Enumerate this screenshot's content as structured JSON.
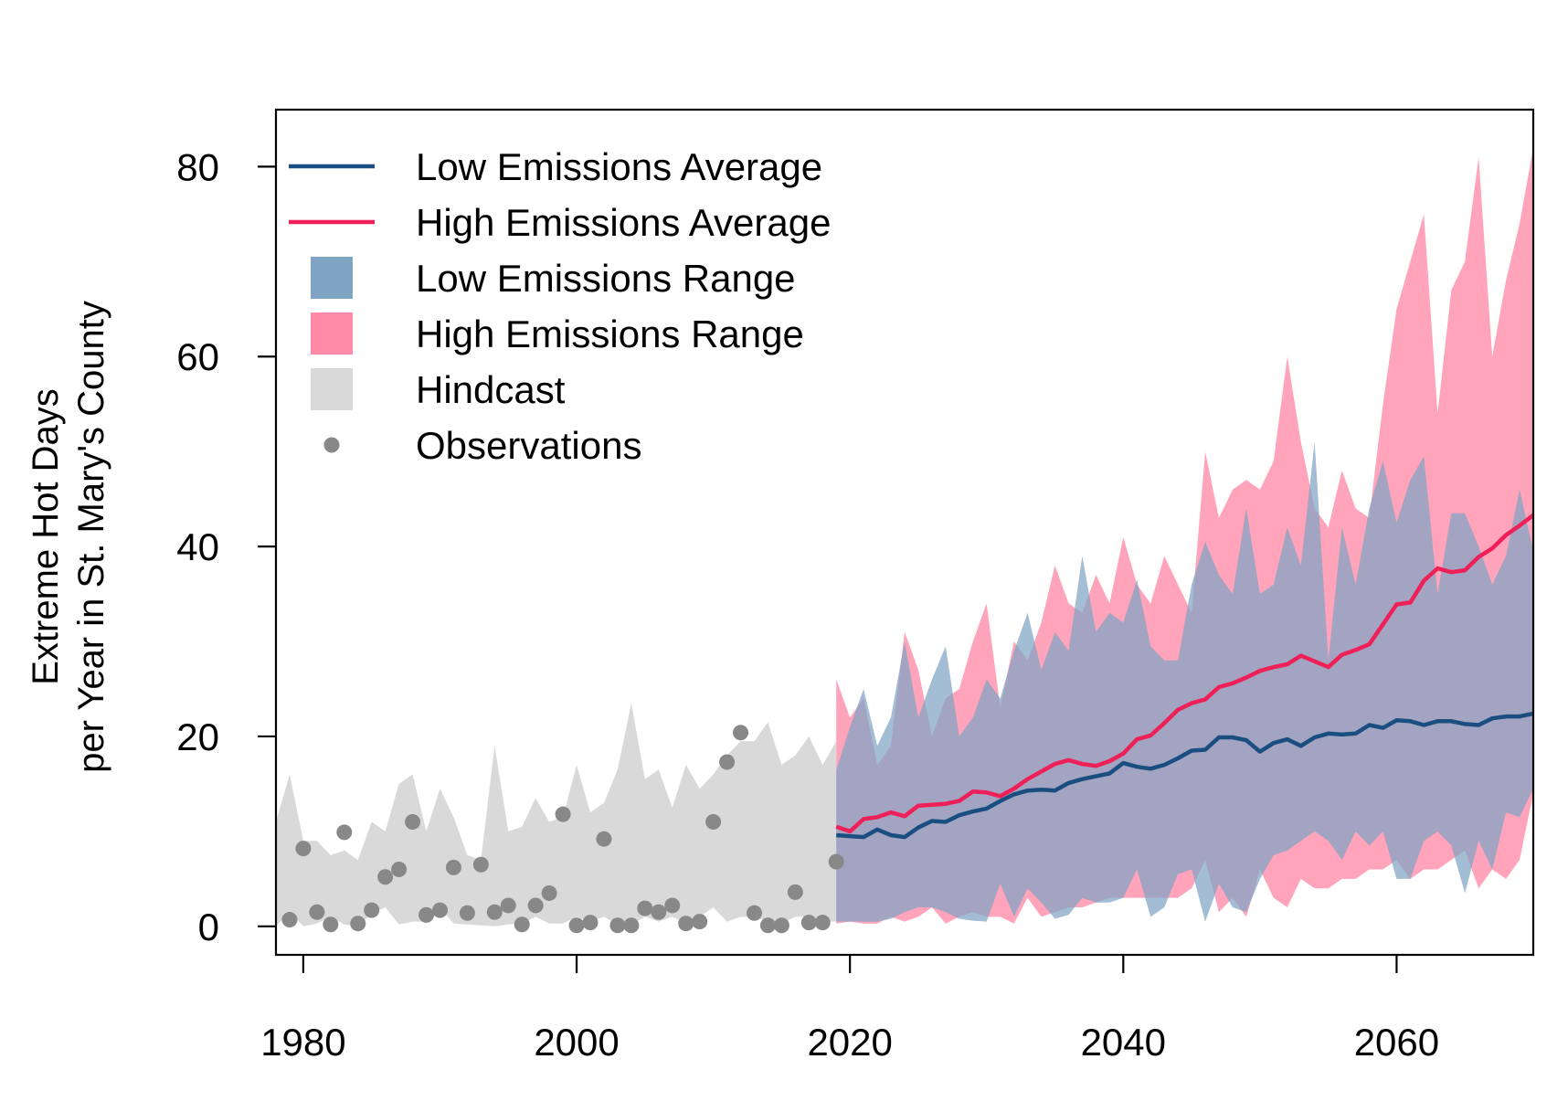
{
  "chart_data": {
    "type": "line",
    "title": "",
    "xlabel": "",
    "ylabel_line1": "Extreme Hot Days",
    "ylabel_line2": "per Year in St. Mary's County",
    "xlim": [
      1978,
      2070
    ],
    "ylim": [
      -3,
      86
    ],
    "x_ticks": [
      1980,
      2000,
      2020,
      2040,
      2060
    ],
    "y_ticks": [
      0,
      20,
      40,
      60,
      80
    ],
    "grid": false,
    "legend_position": "top-left",
    "colors": {
      "low_line": "#1a4e80",
      "high_line": "#ef1f57",
      "low_range": "#7fa3c3",
      "high_range": "#ff8aa8",
      "hindcast": "#d9d9d9",
      "observations": "#888888",
      "axis": "#000000"
    },
    "legend": [
      {
        "kind": "line",
        "label": "Low Emissions Average",
        "color": "#1a4e80"
      },
      {
        "kind": "line",
        "label": "High Emissions Average",
        "color": "#ef1f57"
      },
      {
        "kind": "box",
        "label": "Low Emissions Range",
        "color": "#7fa3c3"
      },
      {
        "kind": "box",
        "label": "High Emissions Range",
        "color": "#ff8aa8"
      },
      {
        "kind": "box",
        "label": "Hindcast",
        "color": "#d9d9d9"
      },
      {
        "kind": "point",
        "label": "Observations",
        "color": "#888888"
      }
    ],
    "hindcast": {
      "x": [
        1978,
        1979,
        1980,
        1981,
        1982,
        1983,
        1984,
        1985,
        1986,
        1987,
        1988,
        1989,
        1990,
        1991,
        1992,
        1993,
        1994,
        1995,
        1996,
        1997,
        1998,
        1999,
        2000,
        2001,
        2002,
        2003,
        2004,
        2005,
        2006,
        2007,
        2008,
        2009,
        2010,
        2011,
        2012,
        2013,
        2014,
        2015,
        2016,
        2017,
        2018,
        2019
      ],
      "upper": [
        11,
        16,
        9,
        9,
        7.5,
        8,
        7,
        11,
        10,
        15,
        16,
        10,
        14.5,
        11.5,
        7.5,
        7,
        19,
        10,
        10.5,
        13.5,
        11,
        11.5,
        17,
        12,
        13,
        16.5,
        23.5,
        15.5,
        16.5,
        12.5,
        17,
        14.5,
        16,
        18,
        19.5,
        19.5,
        21.5,
        17,
        18,
        20,
        17,
        19.5
      ],
      "lower": [
        0,
        1.5,
        0,
        0.3,
        1,
        0.2,
        0,
        1.3,
        2,
        0.2,
        0.5,
        0.5,
        2,
        0.3,
        0.2,
        0.1,
        0,
        0.2,
        0.3,
        1,
        0.3,
        0.3,
        1,
        0.5,
        1,
        0.2,
        0.2,
        1,
        0.5,
        1,
        0.3,
        1,
        2,
        0.5,
        1,
        1,
        0.5,
        0.3,
        1,
        1,
        0.5,
        0.5
      ]
    },
    "observations": {
      "x": [
        1979,
        1980,
        1981,
        1982,
        1983,
        1984,
        1985,
        1986,
        1987,
        1988,
        1989,
        1990,
        1991,
        1992,
        1993,
        1994,
        1995,
        1996,
        1997,
        1998,
        1999,
        2000,
        2001,
        2002,
        2003,
        2004,
        2005,
        2006,
        2007,
        2008,
        2009,
        2010,
        2011,
        2012,
        2013,
        2014,
        2015,
        2016,
        2017,
        2018,
        2019
      ],
      "y": [
        0.7,
        8.2,
        1.5,
        0.2,
        9.9,
        0.3,
        1.7,
        5.2,
        6,
        11,
        1.2,
        1.7,
        6.2,
        1.4,
        6.5,
        1.5,
        2.2,
        0.2,
        2.2,
        3.5,
        11.8,
        0.1,
        0.4,
        9.2,
        0.1,
        0.1,
        1.9,
        1.5,
        2.2,
        0.3,
        0.5,
        11,
        17.3,
        20.4,
        1.4,
        0.1,
        0.1,
        3.6,
        0.4,
        0.4,
        6.8
      ]
    },
    "low_range": {
      "x": [
        2019,
        2020,
        2021,
        2022,
        2023,
        2024,
        2025,
        2026,
        2027,
        2028,
        2029,
        2030,
        2031,
        2032,
        2033,
        2034,
        2035,
        2036,
        2037,
        2038,
        2039,
        2040,
        2041,
        2042,
        2043,
        2044,
        2045,
        2046,
        2047,
        2048,
        2049,
        2050,
        2051,
        2052,
        2053,
        2054,
        2055,
        2056,
        2057,
        2058,
        2059,
        2060,
        2061,
        2062,
        2063,
        2064,
        2065,
        2066,
        2067,
        2068,
        2069,
        2070
      ],
      "upper": [
        16.5,
        21,
        25,
        19,
        22,
        30,
        22,
        26,
        29.5,
        20,
        22,
        26,
        24,
        29,
        33,
        27,
        31,
        29,
        39,
        31,
        33,
        32,
        36.5,
        29.5,
        28,
        28,
        36,
        40.5,
        37,
        35,
        44,
        35,
        36,
        42,
        38,
        51,
        28,
        42,
        36,
        44,
        49,
        42.5,
        47,
        49.5,
        35,
        43.5,
        43.5,
        40,
        36,
        39,
        46,
        39.5
      ],
      "lower": [
        0.5,
        0.5,
        0.5,
        0.5,
        0.8,
        1.5,
        2,
        2,
        1.5,
        0.8,
        0.6,
        0.5,
        4.5,
        1,
        4,
        2.5,
        0.8,
        1.2,
        3,
        2.5,
        2.5,
        3,
        6,
        1,
        2,
        5.5,
        6,
        0.5,
        4.5,
        2,
        1.5,
        5,
        7.5,
        8,
        9,
        10,
        9,
        7,
        10,
        8.5,
        10,
        5,
        5,
        9,
        10,
        8.5,
        3.5,
        9,
        6,
        12,
        11.5,
        14.5
      ]
    },
    "high_range": {
      "x": [
        2019,
        2020,
        2021,
        2022,
        2023,
        2024,
        2025,
        2026,
        2027,
        2028,
        2029,
        2030,
        2031,
        2032,
        2033,
        2034,
        2035,
        2036,
        2037,
        2038,
        2039,
        2040,
        2041,
        2042,
        2043,
        2044,
        2045,
        2046,
        2047,
        2048,
        2049,
        2050,
        2051,
        2052,
        2053,
        2054,
        2055,
        2056,
        2057,
        2058,
        2059,
        2060,
        2061,
        2062,
        2063,
        2064,
        2065,
        2066,
        2067,
        2068,
        2069,
        2070
      ],
      "upper": [
        26,
        22,
        24,
        17,
        19,
        31,
        27,
        20,
        24,
        25,
        30,
        34,
        23,
        30,
        28,
        32,
        38,
        34,
        33,
        37,
        34,
        41,
        36,
        34,
        39,
        36,
        33,
        50,
        43,
        46,
        47,
        46,
        49,
        60,
        51,
        44,
        42,
        48,
        44,
        43,
        55,
        65,
        70,
        75,
        54,
        67,
        70,
        81,
        60,
        68,
        74,
        82
      ],
      "lower": [
        0.3,
        0.5,
        0.3,
        0.3,
        1,
        0.5,
        1,
        2,
        0.3,
        1,
        1.5,
        1,
        1,
        0.3,
        3,
        1,
        1.5,
        2,
        2,
        2.5,
        3,
        3,
        3,
        3,
        3,
        3,
        4,
        7,
        1.5,
        3,
        1,
        6,
        3,
        2,
        5,
        4,
        4,
        5,
        5,
        6,
        6,
        7,
        5,
        6,
        6,
        7,
        8,
        4,
        6,
        5,
        7,
        14
      ]
    },
    "low_avg": {
      "x": [
        2019,
        2020,
        2021,
        2022,
        2023,
        2024,
        2025,
        2026,
        2027,
        2028,
        2029,
        2030,
        2031,
        2032,
        2033,
        2034,
        2035,
        2036,
        2037,
        2038,
        2039,
        2040,
        2041,
        2042,
        2043,
        2044,
        2045,
        2046,
        2047,
        2048,
        2049,
        2050,
        2051,
        2052,
        2053,
        2054,
        2055,
        2056,
        2057,
        2058,
        2059,
        2060,
        2061,
        2062,
        2063,
        2064,
        2065,
        2066,
        2067,
        2068,
        2069,
        2070
      ],
      "y": [
        9.6,
        9.5,
        9.4,
        10.2,
        9.6,
        9.4,
        10.4,
        11.1,
        11,
        11.7,
        12.1,
        12.4,
        13.2,
        13.9,
        14.3,
        14.4,
        14.3,
        15.1,
        15.5,
        15.8,
        16.1,
        17.2,
        16.8,
        16.6,
        17,
        17.7,
        18.5,
        18.6,
        19.9,
        19.9,
        19.6,
        18.4,
        19.3,
        19.7,
        19,
        19.9,
        20.3,
        20.2,
        20.3,
        21.2,
        20.9,
        21.7,
        21.6,
        21.2,
        21.6,
        21.6,
        21.3,
        21.2,
        21.9,
        22.1,
        22.1,
        22.4
      ]
    },
    "high_avg": {
      "x": [
        2019,
        2020,
        2021,
        2022,
        2023,
        2024,
        2025,
        2026,
        2027,
        2028,
        2029,
        2030,
        2031,
        2032,
        2033,
        2034,
        2035,
        2036,
        2037,
        2038,
        2039,
        2040,
        2041,
        2042,
        2043,
        2044,
        2045,
        2046,
        2047,
        2048,
        2049,
        2050,
        2051,
        2052,
        2053,
        2054,
        2055,
        2056,
        2057,
        2058,
        2059,
        2060,
        2061,
        2062,
        2063,
        2064,
        2065,
        2066,
        2067,
        2068,
        2069,
        2070
      ],
      "y": [
        10.5,
        10,
        11.3,
        11.5,
        12,
        11.6,
        12.7,
        12.8,
        12.9,
        13.2,
        14.2,
        14.1,
        13.7,
        14.5,
        15.5,
        16.3,
        17.1,
        17.5,
        17.1,
        16.9,
        17.4,
        18.2,
        19.7,
        20.1,
        21.4,
        22.8,
        23.5,
        23.9,
        25.2,
        25.6,
        26.2,
        26.9,
        27.3,
        27.6,
        28.5,
        27.9,
        27.3,
        28.6,
        29.1,
        29.7,
        31.8,
        33.9,
        34.1,
        36.4,
        37.7,
        37.3,
        37.5,
        38.9,
        39.8,
        41.2,
        42.2,
        43.3
      ]
    }
  }
}
